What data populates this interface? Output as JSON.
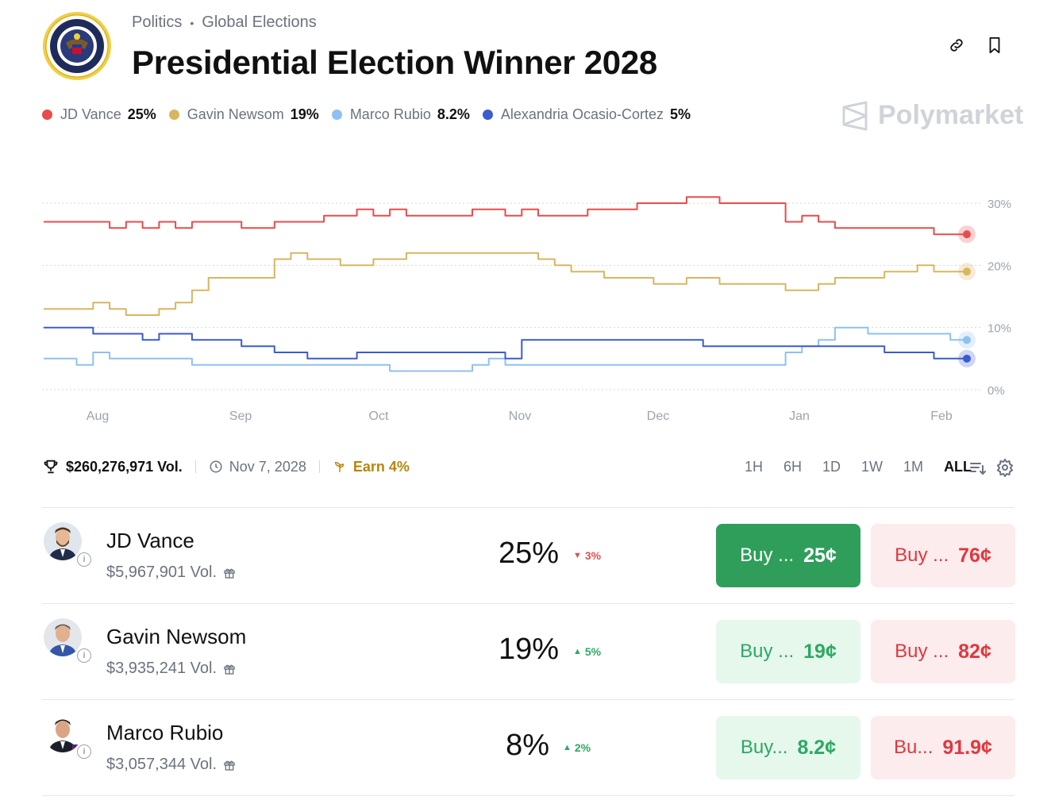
{
  "header": {
    "breadcrumb": [
      "Politics",
      "Global Elections"
    ],
    "title": "Presidential Election Winner 2028"
  },
  "brand": "Polymarket",
  "legend": [
    {
      "name": "JD Vance",
      "pct": "25%",
      "color": "#e84c4c"
    },
    {
      "name": "Gavin Newsom",
      "pct": "19%",
      "color": "#d9b560"
    },
    {
      "name": "Marco Rubio",
      "pct": "8.2%",
      "color": "#8ec0f2"
    },
    {
      "name": "Alexandria Ocasio-Cortez",
      "pct": "5%",
      "color": "#3b5bd1"
    }
  ],
  "chart_data": {
    "type": "line",
    "x_ticks": [
      "Aug",
      "Sep",
      "Oct",
      "Nov",
      "Dec",
      "Jan",
      "Feb"
    ],
    "y_ticks": [
      "30%",
      "20%",
      "10%",
      "0%"
    ],
    "ylim": [
      0,
      30
    ],
    "grid": true,
    "series": [
      {
        "name": "JD Vance",
        "color": "#e84c4c",
        "values": [
          27,
          27,
          27,
          27,
          26,
          27,
          26,
          27,
          26,
          27,
          27,
          27,
          26,
          26,
          27,
          27,
          27,
          28,
          28,
          29,
          28,
          29,
          28,
          28,
          28,
          28,
          29,
          29,
          28,
          29,
          28,
          28,
          28,
          29,
          29,
          29,
          30,
          30,
          30,
          31,
          31,
          30,
          30,
          30,
          30,
          27,
          28,
          27,
          26,
          26,
          26,
          26,
          26,
          26,
          25,
          25,
          25
        ]
      },
      {
        "name": "Gavin Newsom",
        "color": "#d9b560",
        "values": [
          13,
          13,
          13,
          14,
          13,
          12,
          12,
          13,
          14,
          16,
          18,
          18,
          18,
          18,
          21,
          22,
          21,
          21,
          20,
          20,
          21,
          21,
          22,
          22,
          22,
          22,
          22,
          22,
          22,
          22,
          21,
          20,
          19,
          19,
          18,
          18,
          18,
          17,
          17,
          18,
          18,
          17,
          17,
          17,
          17,
          16,
          16,
          17,
          18,
          18,
          18,
          19,
          19,
          20,
          19,
          19,
          19
        ]
      },
      {
        "name": "Marco Rubio",
        "color": "#8ec0f2",
        "values": [
          5,
          5,
          4,
          6,
          5,
          5,
          5,
          5,
          5,
          4,
          4,
          4,
          4,
          4,
          4,
          4,
          4,
          4,
          4,
          4,
          4,
          3,
          3,
          3,
          3,
          3,
          4,
          5,
          4,
          4,
          4,
          4,
          4,
          4,
          4,
          4,
          4,
          4,
          4,
          4,
          4,
          4,
          4,
          4,
          4,
          6,
          7,
          8,
          10,
          10,
          9,
          9,
          9,
          9,
          9,
          8,
          8
        ]
      },
      {
        "name": "Alexandria Ocasio-Cortez",
        "color": "#3b5bd1",
        "values": [
          10,
          10,
          10,
          9,
          9,
          9,
          8,
          9,
          9,
          8,
          8,
          8,
          7,
          7,
          6,
          6,
          5,
          5,
          5,
          6,
          6,
          6,
          6,
          6,
          6,
          6,
          6,
          6,
          5,
          8,
          8,
          8,
          8,
          8,
          8,
          8,
          8,
          8,
          8,
          8,
          7,
          7,
          7,
          7,
          7,
          7,
          7,
          7,
          7,
          7,
          7,
          6,
          6,
          6,
          5,
          5,
          5
        ]
      }
    ]
  },
  "stats": {
    "volume": "$260,276,971 Vol.",
    "date": "Nov 7, 2028",
    "earn": "Earn 4%"
  },
  "ranges": [
    "1H",
    "6H",
    "1D",
    "1W",
    "1M",
    "ALL"
  ],
  "active_range": "ALL",
  "outcomes": [
    {
      "name": "JD Vance",
      "volume": "$5,967,901 Vol.",
      "pct": "25%",
      "change": "3%",
      "direction": "down",
      "yes_label": "Buy ...",
      "yes_price": "25¢",
      "no_label": "Buy ...",
      "no_price": "76¢"
    },
    {
      "name": "Gavin Newsom",
      "volume": "$3,935,241 Vol.",
      "pct": "19%",
      "change": "5%",
      "direction": "up",
      "yes_label": "Buy ...",
      "yes_price": "19¢",
      "no_label": "Buy ...",
      "no_price": "82¢"
    },
    {
      "name": "Marco Rubio",
      "volume": "$3,057,344 Vol.",
      "pct": "8%",
      "change": "2%",
      "direction": "up",
      "yes_label": "Buy...",
      "yes_price": "8.2¢",
      "no_label": "Bu...",
      "no_price": "91.9¢"
    }
  ]
}
